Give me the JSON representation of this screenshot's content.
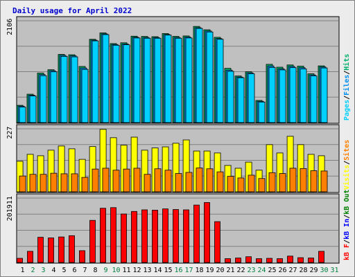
{
  "chart_data": {
    "type": "bar",
    "title": "Daily usage for April 2022",
    "colors": {
      "background": "#ececec",
      "panel": "#c0c0c0",
      "grid": "#808080",
      "hits": "#00b06a",
      "files": "#0090f0",
      "pages": "#00d0ff",
      "visits": "#ffff00",
      "sites": "#ff8000",
      "kb_in": "#0000ff",
      "kb_out": "#008000",
      "kb_f": "#ff0000",
      "title": "#0000cc",
      "weekday": "#000000",
      "weekend": "#008040"
    },
    "categories": [
      "1",
      "2",
      "3",
      "4",
      "5",
      "6",
      "7",
      "8",
      "9",
      "10",
      "11",
      "12",
      "13",
      "14",
      "15",
      "16",
      "17",
      "18",
      "19",
      "20",
      "21",
      "22",
      "23",
      "24",
      "25",
      "26",
      "27",
      "28",
      "29",
      "30",
      "31"
    ],
    "weekend_days": [
      "2",
      "3",
      "9",
      "10",
      "16",
      "17",
      "23",
      "24",
      "30",
      "31"
    ],
    "panels": [
      {
        "id": "hits",
        "ymax_label": "2106",
        "ymax": 2106,
        "legend": [
          {
            "text": "Pages",
            "color": "#00d0ff"
          },
          {
            "text": "/",
            "color": "#000000"
          },
          {
            "text": "Files",
            "color": "#0090f0"
          },
          {
            "text": "/",
            "color": "#000000"
          },
          {
            "text": "Hits",
            "color": "#00b06a"
          }
        ],
        "series": [
          {
            "name": "Hits",
            "values": [
              357,
              587,
              1024,
              1093,
              1410,
              1403,
              1161,
              1723,
              1855,
              1634,
              1651,
              1787,
              1782,
              1777,
              1842,
              1783,
              1792,
              1989,
              1920,
              1764,
              1122,
              964,
              1051,
              458,
              1205,
              1146,
              1192,
              1167,
              1009,
              1173,
              0
            ]
          },
          {
            "name": "Files",
            "values": [
              340,
              566,
              994,
              1073,
              1390,
              1380,
              1129,
              1704,
              1835,
              1615,
              1627,
              1765,
              1760,
              1759,
              1822,
              1760,
              1770,
              1963,
              1894,
              1738,
              1085,
              943,
              1029,
              440,
              1171,
              1111,
              1162,
              1136,
              986,
              1150,
              0
            ]
          },
          {
            "name": "Pages",
            "values": [
              320,
              550,
              970,
              1050,
              1370,
              1360,
              1100,
              1690,
              1820,
              1600,
              1610,
              1750,
              1745,
              1745,
              1810,
              1745,
              1750,
              1948,
              1874,
              1723,
              1060,
              928,
              1010,
              425,
              1141,
              1090,
              1137,
              1110,
              965,
              1130,
              0
            ]
          }
        ]
      },
      {
        "id": "visits",
        "ymax_label": "227",
        "ymax": 227,
        "legend": [
          {
            "text": "Visits",
            "color": "#ffff00"
          },
          {
            "text": "/",
            "color": "#000000"
          },
          {
            "text": "Sites",
            "color": "#ff8000"
          }
        ],
        "series": [
          {
            "name": "Visits",
            "values": [
              110,
              135,
              130,
              150,
              165,
              155,
              117,
              163,
              225,
              195,
              168,
              197,
              150,
              158,
              162,
              175,
              187,
              147,
              147,
              140,
              95,
              85,
              107,
              78,
              170,
              140,
              200,
              170,
              135,
              130,
              0
            ]
          },
          {
            "name": "Sites",
            "values": [
              57,
              63,
              63,
              67,
              65,
              65,
              52,
              82,
              85,
              78,
              82,
              85,
              63,
              83,
              78,
              66,
              70,
              86,
              83,
              72,
              56,
              50,
              60,
              48,
              69,
              66,
              85,
              84,
              76,
              75,
              0
            ]
          }
        ]
      },
      {
        "id": "kbytes",
        "ymax_label": "201911",
        "ymax": 201911,
        "legend": [
          {
            "text": "kB F",
            "color": "#ff0000"
          },
          {
            "text": "/",
            "color": "#000000"
          },
          {
            "text": "kB In",
            "color": "#0000ff"
          },
          {
            "text": "/",
            "color": "#000000"
          },
          {
            "text": "kB Out",
            "color": "#008000"
          }
        ],
        "series": [
          {
            "name": "kB F",
            "values": [
              13000,
              35000,
              79000,
              77000,
              80000,
              84000,
              37000,
              132000,
              170000,
              172000,
              152000,
              160000,
              165000,
              164000,
              168000,
              166000,
              165000,
              180000,
              188000,
              128000,
              12000,
              14000,
              18000,
              12000,
              13000,
              12000,
              20000,
              15000,
              14000,
              35000,
              0
            ]
          }
        ]
      }
    ]
  }
}
